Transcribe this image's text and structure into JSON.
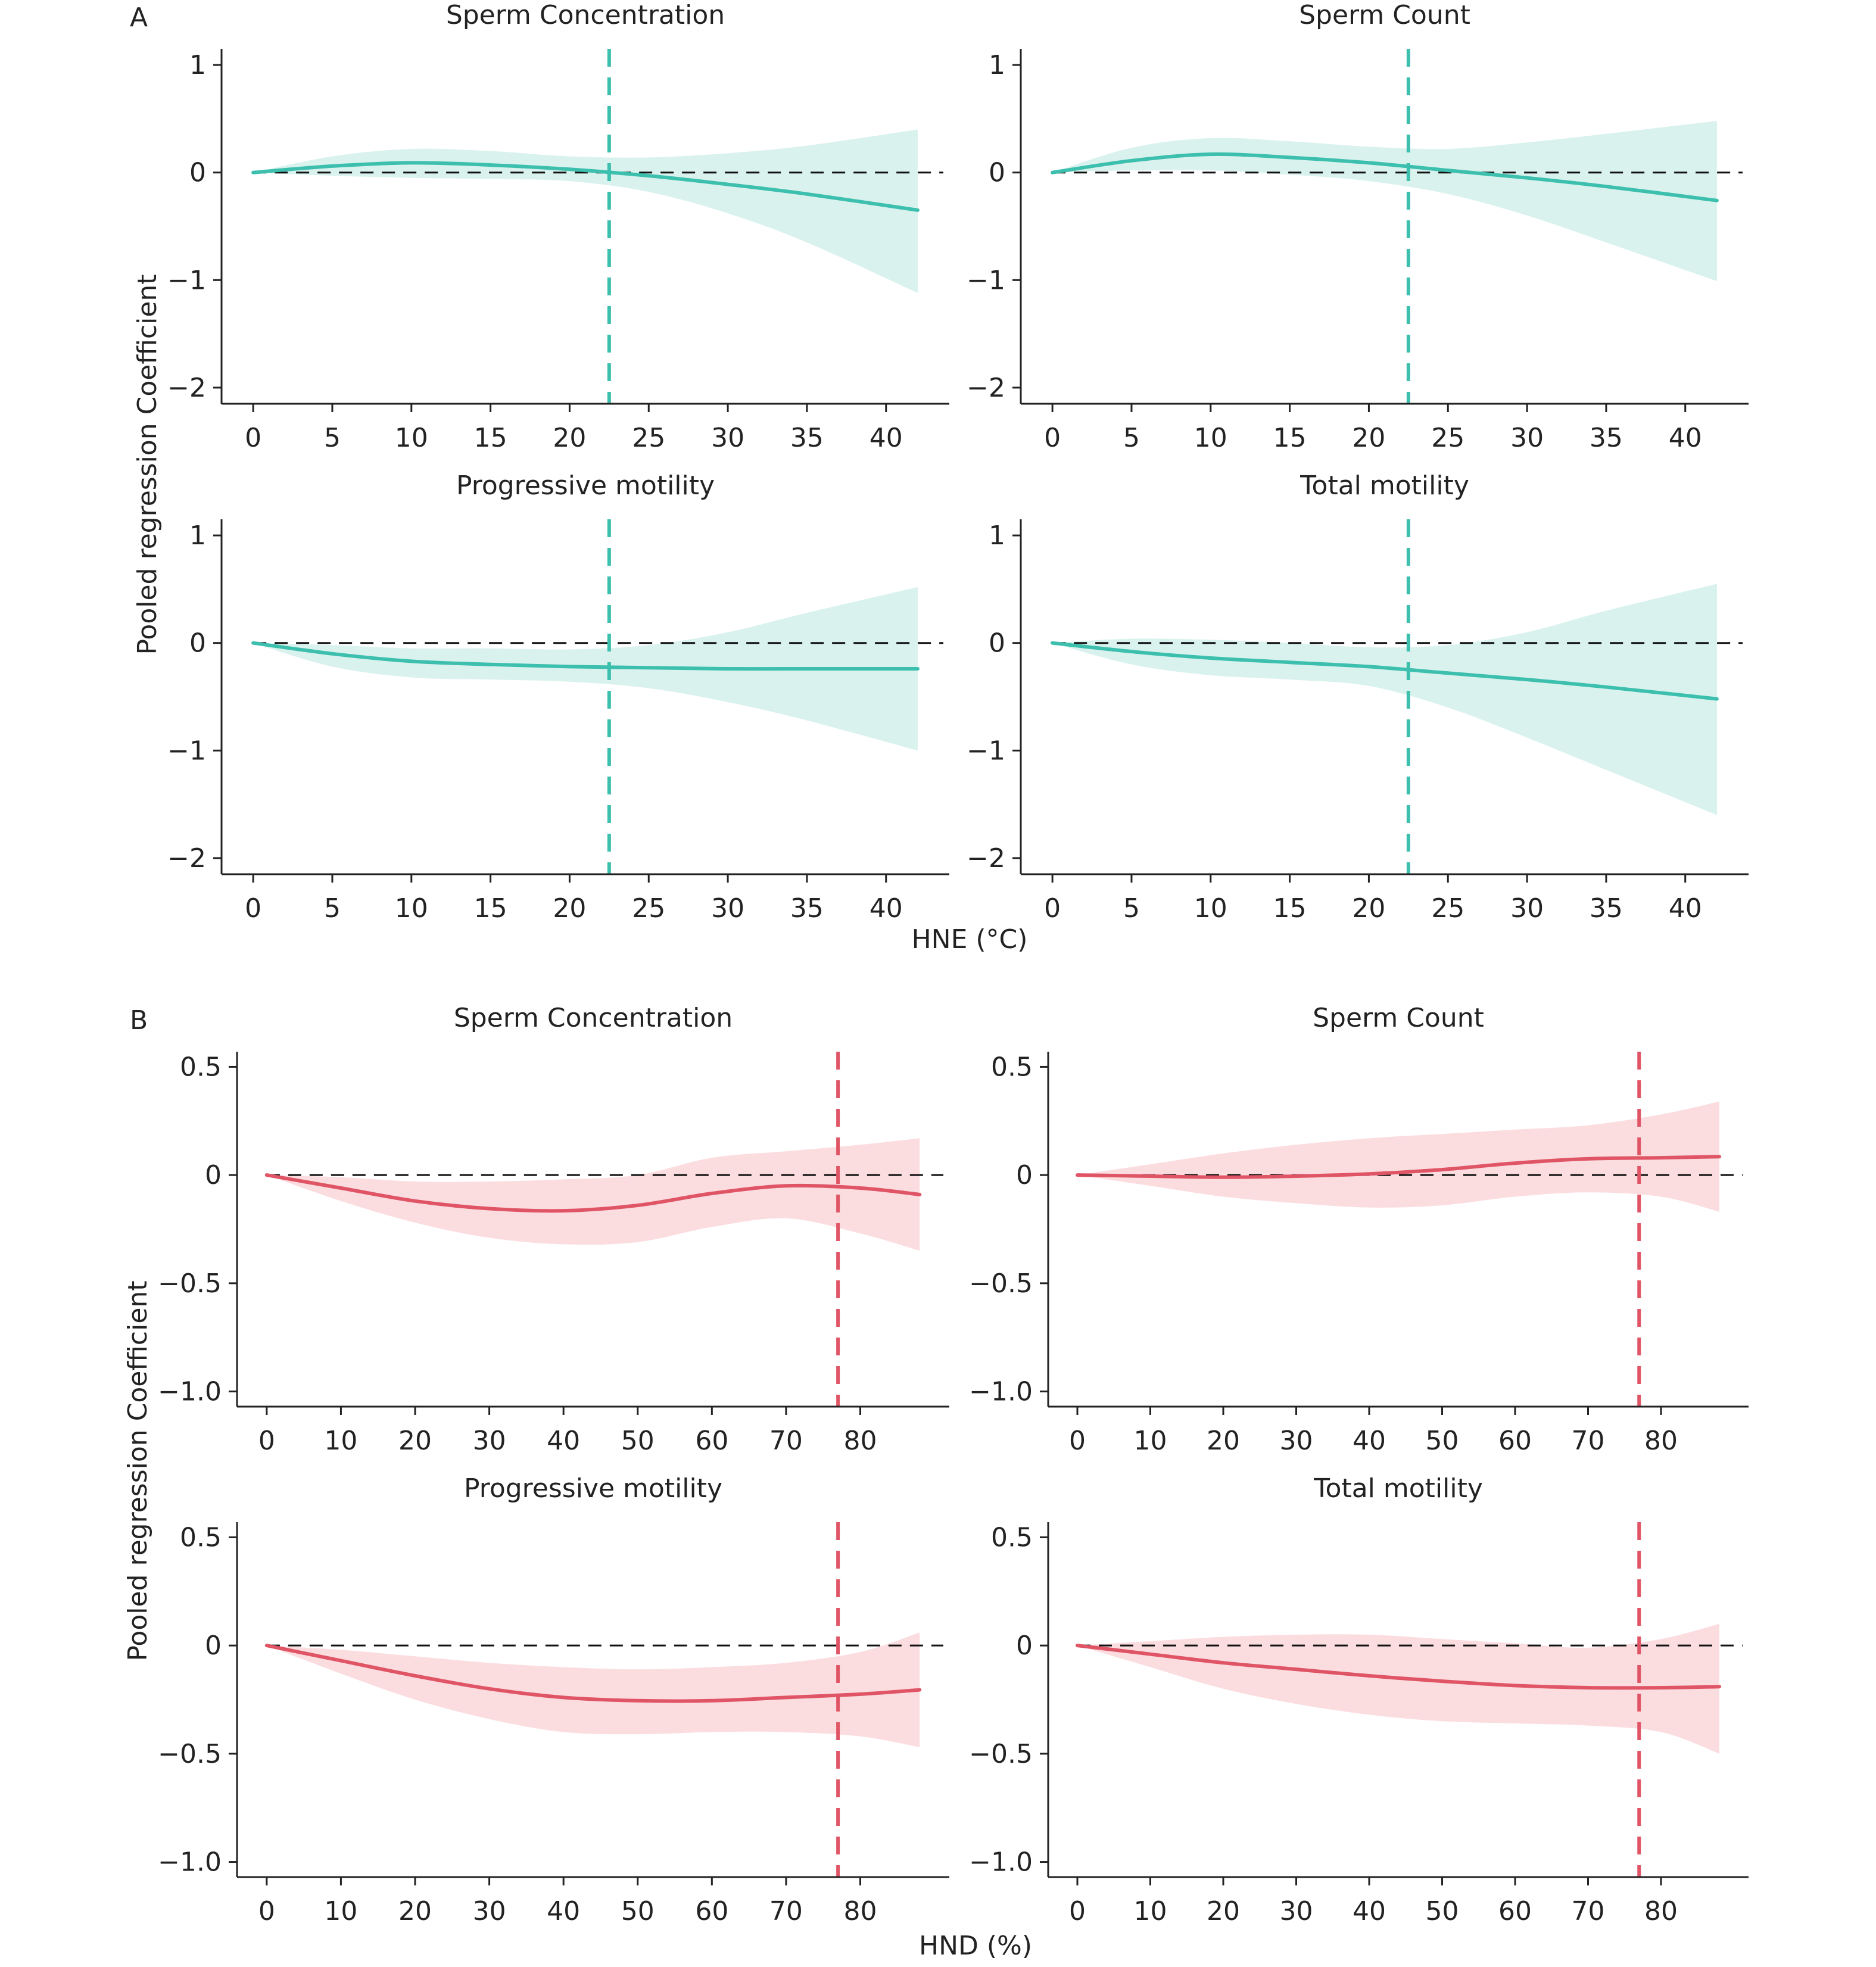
{
  "figure": {
    "panel_a": {
      "label": "A",
      "ylabel": "Pooled regression Coefficient",
      "xlabel": "HNE (°C)",
      "line_color": "#3dbfae",
      "band_color": "#d9f2ee",
      "threshold_color": "#3dbfae"
    },
    "panel_b": {
      "label": "B",
      "ylabel": "Pooled regression Coefficient",
      "xlabel": "HND (%)",
      "line_color": "#e05566",
      "band_color": "#fbdde0",
      "threshold_color": "#e05566"
    }
  },
  "chart_data": [
    {
      "type": "line",
      "group": "A",
      "title": "Sperm Concentration",
      "xlim": [
        -2,
        44
      ],
      "xticks": [
        0,
        5,
        10,
        15,
        20,
        25,
        30,
        35,
        40
      ],
      "ylim": [
        -2.15,
        1.15
      ],
      "yticks": [
        1,
        0,
        -1,
        -2
      ],
      "ytick_labels": [
        "1",
        "0",
        "−1",
        "−2"
      ],
      "threshold_x": 22.5,
      "reference_y": 0,
      "x": [
        0,
        5,
        10,
        15,
        20,
        25,
        30,
        35,
        42
      ],
      "y": [
        0,
        0.06,
        0.09,
        0.07,
        0.03,
        -0.03,
        -0.11,
        -0.2,
        -0.35
      ],
      "lower": [
        0,
        -0.03,
        -0.05,
        -0.06,
        -0.08,
        -0.18,
        -0.38,
        -0.65,
        -1.12
      ],
      "upper": [
        0,
        0.15,
        0.22,
        0.2,
        0.15,
        0.14,
        0.18,
        0.25,
        0.4
      ]
    },
    {
      "type": "line",
      "group": "A",
      "title": "Sperm Count",
      "xlim": [
        -2,
        44
      ],
      "xticks": [
        0,
        5,
        10,
        15,
        20,
        25,
        30,
        35,
        40
      ],
      "ylim": [
        -2.15,
        1.15
      ],
      "yticks": [
        1,
        0,
        -1,
        -2
      ],
      "ytick_labels": [
        "1",
        "0",
        "−1",
        "−2"
      ],
      "threshold_x": 22.5,
      "reference_y": 0,
      "x": [
        0,
        5,
        10,
        15,
        20,
        25,
        30,
        35,
        42
      ],
      "y": [
        0,
        0.11,
        0.17,
        0.14,
        0.09,
        0.02,
        -0.05,
        -0.13,
        -0.26
      ],
      "lower": [
        0,
        0.02,
        0.02,
        -0.02,
        -0.08,
        -0.2,
        -0.4,
        -0.65,
        -1.01
      ],
      "upper": [
        0,
        0.23,
        0.32,
        0.29,
        0.24,
        0.22,
        0.28,
        0.36,
        0.48
      ]
    },
    {
      "type": "line",
      "group": "A",
      "title": "Progressive motility",
      "xlim": [
        -2,
        44
      ],
      "xticks": [
        0,
        5,
        10,
        15,
        20,
        25,
        30,
        35,
        40
      ],
      "ylim": [
        -2.15,
        1.15
      ],
      "yticks": [
        1,
        0,
        -1,
        -2
      ],
      "ytick_labels": [
        "1",
        "0",
        "−1",
        "−2"
      ],
      "threshold_x": 22.5,
      "reference_y": 0,
      "x": [
        0,
        5,
        10,
        15,
        20,
        25,
        30,
        35,
        42
      ],
      "y": [
        0,
        -0.1,
        -0.17,
        -0.2,
        -0.22,
        -0.23,
        -0.24,
        -0.24,
        -0.24
      ],
      "lower": [
        0,
        -0.22,
        -0.32,
        -0.34,
        -0.36,
        -0.42,
        -0.55,
        -0.72,
        -1.0
      ],
      "upper": [
        0,
        -0.02,
        -0.05,
        -0.05,
        -0.06,
        -0.02,
        0.1,
        0.28,
        0.52
      ]
    },
    {
      "type": "line",
      "group": "A",
      "title": "Total motility",
      "xlim": [
        -2,
        44
      ],
      "xticks": [
        0,
        5,
        10,
        15,
        20,
        25,
        30,
        35,
        40
      ],
      "ylim": [
        -2.15,
        1.15
      ],
      "yticks": [
        1,
        0,
        -1,
        -2
      ],
      "ytick_labels": [
        "1",
        "0",
        "−1",
        "−2"
      ],
      "threshold_x": 22.5,
      "reference_y": 0,
      "x": [
        0,
        5,
        10,
        15,
        20,
        25,
        30,
        35,
        42
      ],
      "y": [
        0,
        -0.08,
        -0.14,
        -0.18,
        -0.22,
        -0.28,
        -0.34,
        -0.41,
        -0.52
      ],
      "lower": [
        0,
        -0.2,
        -0.3,
        -0.34,
        -0.4,
        -0.6,
        -0.88,
        -1.18,
        -1.6
      ],
      "upper": [
        0,
        0.04,
        0.03,
        0.0,
        -0.04,
        -0.02,
        0.1,
        0.3,
        0.55
      ]
    },
    {
      "type": "line",
      "group": "B",
      "title": "Sperm Concentration",
      "xlim": [
        -4,
        92
      ],
      "xticks": [
        0,
        10,
        20,
        30,
        40,
        50,
        60,
        70,
        80
      ],
      "ylim": [
        -1.07,
        0.57
      ],
      "yticks": [
        0.5,
        0,
        -0.5,
        -1.0
      ],
      "ytick_labels": [
        "0.5",
        "0",
        "−0.5",
        "−1.0"
      ],
      "threshold_x": 77,
      "reference_y": 0,
      "x": [
        0,
        10,
        20,
        30,
        40,
        50,
        60,
        70,
        80,
        88
      ],
      "y": [
        0,
        -0.06,
        -0.12,
        -0.155,
        -0.165,
        -0.14,
        -0.085,
        -0.05,
        -0.06,
        -0.09
      ],
      "lower": [
        0,
        -0.12,
        -0.22,
        -0.29,
        -0.32,
        -0.31,
        -0.24,
        -0.2,
        -0.27,
        -0.35
      ],
      "upper": [
        0,
        -0.01,
        -0.03,
        -0.03,
        -0.02,
        0.0,
        0.08,
        0.11,
        0.14,
        0.17
      ]
    },
    {
      "type": "line",
      "group": "B",
      "title": "Sperm Count",
      "xlim": [
        -4,
        92
      ],
      "xticks": [
        0,
        10,
        20,
        30,
        40,
        50,
        60,
        70,
        80
      ],
      "ylim": [
        -1.07,
        0.57
      ],
      "yticks": [
        0.5,
        0,
        -0.5,
        -1.0
      ],
      "ytick_labels": [
        "0.5",
        "0",
        "−0.5",
        "−1.0"
      ],
      "threshold_x": 77,
      "reference_y": 0,
      "x": [
        0,
        10,
        20,
        30,
        40,
        50,
        60,
        70,
        80,
        88
      ],
      "y": [
        0,
        -0.005,
        -0.01,
        -0.005,
        0.005,
        0.025,
        0.055,
        0.075,
        0.08,
        0.085
      ],
      "lower": [
        0,
        -0.05,
        -0.1,
        -0.13,
        -0.15,
        -0.14,
        -0.1,
        -0.08,
        -0.1,
        -0.17
      ],
      "upper": [
        0,
        0.05,
        0.1,
        0.14,
        0.17,
        0.19,
        0.21,
        0.23,
        0.28,
        0.34
      ]
    },
    {
      "type": "line",
      "group": "B",
      "title": "Progressive motility",
      "xlim": [
        -4,
        92
      ],
      "xticks": [
        0,
        10,
        20,
        30,
        40,
        50,
        60,
        70,
        80
      ],
      "ylim": [
        -1.07,
        0.57
      ],
      "yticks": [
        0.5,
        0,
        -0.5,
        -1.0
      ],
      "ytick_labels": [
        "0.5",
        "0",
        "−0.5",
        "−1.0"
      ],
      "threshold_x": 77,
      "reference_y": 0,
      "x": [
        0,
        10,
        20,
        30,
        40,
        50,
        60,
        70,
        80,
        88
      ],
      "y": [
        0,
        -0.07,
        -0.14,
        -0.2,
        -0.24,
        -0.255,
        -0.255,
        -0.24,
        -0.225,
        -0.205
      ],
      "lower": [
        0,
        -0.13,
        -0.25,
        -0.34,
        -0.4,
        -0.41,
        -0.4,
        -0.4,
        -0.42,
        -0.47
      ],
      "upper": [
        0,
        -0.02,
        -0.05,
        -0.08,
        -0.1,
        -0.11,
        -0.1,
        -0.08,
        -0.03,
        0.06
      ]
    },
    {
      "type": "line",
      "group": "B",
      "title": "Total motility",
      "xlim": [
        -4,
        92
      ],
      "xticks": [
        0,
        10,
        20,
        30,
        40,
        50,
        60,
        70,
        80
      ],
      "ylim": [
        -1.07,
        0.57
      ],
      "yticks": [
        0.5,
        0,
        -0.5,
        -1.0
      ],
      "ytick_labels": [
        "0.5",
        "0",
        "−0.5",
        "−1.0"
      ],
      "threshold_x": 77,
      "reference_y": 0,
      "x": [
        0,
        10,
        20,
        30,
        40,
        50,
        60,
        70,
        80,
        88
      ],
      "y": [
        0,
        -0.04,
        -0.08,
        -0.11,
        -0.14,
        -0.165,
        -0.185,
        -0.195,
        -0.195,
        -0.19
      ],
      "lower": [
        0,
        -0.1,
        -0.2,
        -0.27,
        -0.32,
        -0.35,
        -0.36,
        -0.37,
        -0.4,
        -0.5
      ],
      "upper": [
        0,
        0.02,
        0.04,
        0.05,
        0.05,
        0.03,
        0.01,
        -0.01,
        0.03,
        0.1
      ]
    }
  ]
}
